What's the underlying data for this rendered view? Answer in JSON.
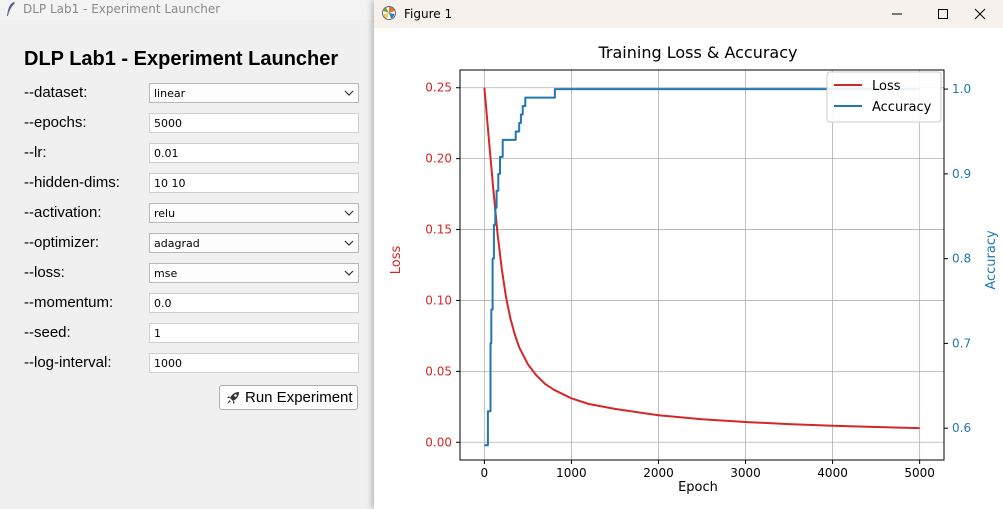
{
  "launcher": {
    "window_title": "DLP Lab1 - Experiment Launcher",
    "heading": "DLP Lab1 - Experiment Launcher",
    "fields": {
      "dataset": {
        "label": "--dataset:",
        "value": "linear"
      },
      "epochs": {
        "label": "--epochs:",
        "value": "5000"
      },
      "lr": {
        "label": "--lr:",
        "value": "0.01"
      },
      "hidden_dims": {
        "label": "--hidden-dims:",
        "value": "10 10"
      },
      "activation": {
        "label": "--activation:",
        "value": "relu"
      },
      "optimizer": {
        "label": "--optimizer:",
        "value": "adagrad"
      },
      "loss": {
        "label": "--loss:",
        "value": "mse"
      },
      "momentum": {
        "label": "--momentum:",
        "value": "0.0"
      },
      "seed": {
        "label": "--seed:",
        "value": "1"
      },
      "log_interval": {
        "label": "--log-interval:",
        "value": "1000"
      }
    },
    "run_button": {
      "label": "Run Experiment",
      "icon": "rocket-icon"
    }
  },
  "figure_window": {
    "title": "Figure 1",
    "controls": [
      "minimize-icon",
      "maximize-icon",
      "close-icon"
    ]
  },
  "chart_data": {
    "type": "line",
    "title": "Training Loss & Accuracy",
    "xlabel": "Epoch",
    "ylabel": "Loss",
    "y2label": "Accuracy",
    "xlim": [
      -280,
      5280
    ],
    "ylim": [
      -0.0125,
      0.2625
    ],
    "y2lim": [
      0.5625,
      1.0225
    ],
    "xticks": [
      "0",
      "1000",
      "2000",
      "3000",
      "4000",
      "5000"
    ],
    "yticks": [
      "0.00",
      "0.05",
      "0.10",
      "0.15",
      "0.20",
      "0.25"
    ],
    "y2ticks": [
      "0.6",
      "0.7",
      "0.8",
      "0.9",
      "1.0"
    ],
    "grid": true,
    "legend_position": "upper right",
    "colors": {
      "loss": "#d62728",
      "accuracy": "#1f77b4"
    },
    "series": [
      {
        "name": "Loss",
        "axis": "left",
        "x": [
          0,
          50,
          100,
          150,
          200,
          250,
          300,
          350,
          400,
          500,
          600,
          700,
          800,
          1000,
          1200,
          1500,
          2000,
          2500,
          3000,
          3500,
          4000,
          4500,
          5000
        ],
        "values": [
          0.25,
          0.215,
          0.18,
          0.148,
          0.122,
          0.102,
          0.087,
          0.076,
          0.067,
          0.055,
          0.047,
          0.041,
          0.037,
          0.031,
          0.027,
          0.0235,
          0.019,
          0.0162,
          0.0143,
          0.0128,
          0.0117,
          0.0108,
          0.01
        ]
      },
      {
        "name": "Accuracy",
        "axis": "right",
        "x": [
          0,
          40,
          40,
          70,
          70,
          80,
          80,
          95,
          95,
          110,
          110,
          125,
          125,
          140,
          140,
          160,
          160,
          180,
          180,
          210,
          210,
          250,
          250,
          360,
          360,
          400,
          400,
          420,
          420,
          440,
          440,
          470,
          470,
          810,
          810,
          5000
        ],
        "values": [
          0.58,
          0.58,
          0.62,
          0.62,
          0.7,
          0.7,
          0.74,
          0.74,
          0.8,
          0.8,
          0.84,
          0.84,
          0.86,
          0.86,
          0.88,
          0.88,
          0.9,
          0.9,
          0.92,
          0.92,
          0.94,
          0.94,
          0.94,
          0.94,
          0.95,
          0.95,
          0.96,
          0.96,
          0.97,
          0.97,
          0.98,
          0.98,
          0.99,
          0.99,
          1.0,
          1.0
        ]
      }
    ]
  }
}
